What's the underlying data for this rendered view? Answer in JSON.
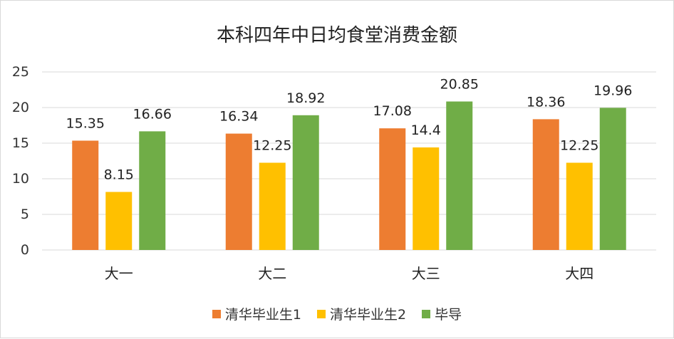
{
  "chart_data": {
    "type": "bar",
    "title": "本科四年中日均食堂消费金额",
    "categories": [
      "大一",
      "大二",
      "大三",
      "大四"
    ],
    "series": [
      {
        "name": "清华毕业生1",
        "color": "#ED7D31",
        "values": [
          15.35,
          16.34,
          17.08,
          18.36
        ]
      },
      {
        "name": "清华毕业生2",
        "color": "#FFC000",
        "values": [
          8.15,
          12.25,
          14.4,
          12.25
        ]
      },
      {
        "name": "毕导",
        "color": "#70AD47",
        "values": [
          16.66,
          18.92,
          20.85,
          19.96
        ]
      }
    ],
    "value_labels": [
      [
        "15.35",
        "16.34",
        "17.08",
        "18.36"
      ],
      [
        "8.15",
        "12.25",
        "14.4",
        "12.25"
      ],
      [
        "16.66",
        "18.92",
        "20.85",
        "19.96"
      ]
    ],
    "yticks": [
      "0",
      "5",
      "10",
      "15",
      "20",
      "25"
    ],
    "ylim": [
      0,
      25
    ],
    "grid": true,
    "legend_position": "bottom"
  }
}
